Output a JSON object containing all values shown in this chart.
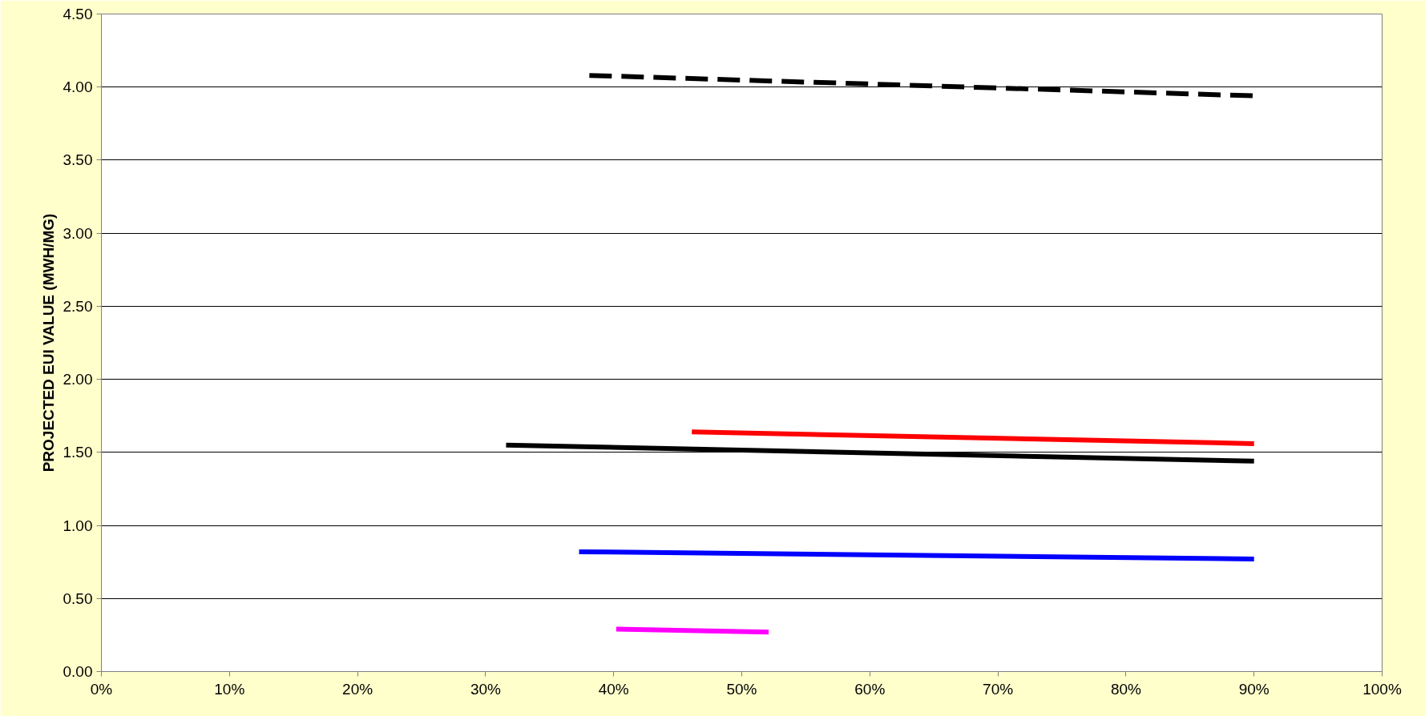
{
  "chart_data": {
    "type": "line",
    "ylabel": "PROJECTED EUI VALUE (MWH/MG)",
    "xlim": [
      0,
      100
    ],
    "ylim": [
      0,
      4.5
    ],
    "xticks": [
      {
        "value": 0,
        "label": "0%"
      },
      {
        "value": 10,
        "label": "10%"
      },
      {
        "value": 20,
        "label": "20%"
      },
      {
        "value": 30,
        "label": "30%"
      },
      {
        "value": 40,
        "label": "40%"
      },
      {
        "value": 50,
        "label": "50%"
      },
      {
        "value": 60,
        "label": "60%"
      },
      {
        "value": 70,
        "label": "70%"
      },
      {
        "value": 80,
        "label": "80%"
      },
      {
        "value": 90,
        "label": "90%"
      },
      {
        "value": 100,
        "label": "100%"
      }
    ],
    "yticks": [
      {
        "value": 0,
        "label": "0.00"
      },
      {
        "value": 0.5,
        "label": "0.50"
      },
      {
        "value": 1,
        "label": "1.00"
      },
      {
        "value": 1.5,
        "label": "1.50"
      },
      {
        "value": 2,
        "label": "2.00"
      },
      {
        "value": 2.5,
        "label": "2.50"
      },
      {
        "value": 3,
        "label": "3.00"
      },
      {
        "value": 3.5,
        "label": "3.50"
      },
      {
        "value": 4,
        "label": "4.00"
      },
      {
        "value": 4.5,
        "label": "4.50"
      }
    ],
    "grid": "y",
    "marker": "none",
    "series": [
      {
        "color": "#000000",
        "line_style": "dashed",
        "x": [
          38.1,
          90
        ],
        "values": [
          4.08,
          3.94
        ]
      },
      {
        "color": "#000000",
        "line_style": "solid",
        "x": [
          31.6,
          90
        ],
        "values": [
          1.55,
          1.44
        ]
      },
      {
        "color": "#ff0000",
        "line_style": "solid",
        "x": [
          46.1,
          90
        ],
        "values": [
          1.64,
          1.56
        ]
      },
      {
        "color": "#0000ff",
        "line_style": "solid",
        "x": [
          37.3,
          90
        ],
        "values": [
          0.82,
          0.77
        ]
      },
      {
        "color": "#ff00ff",
        "line_style": "solid",
        "x": [
          40.2,
          52.1
        ],
        "values": [
          0.29,
          0.27
        ]
      }
    ]
  }
}
